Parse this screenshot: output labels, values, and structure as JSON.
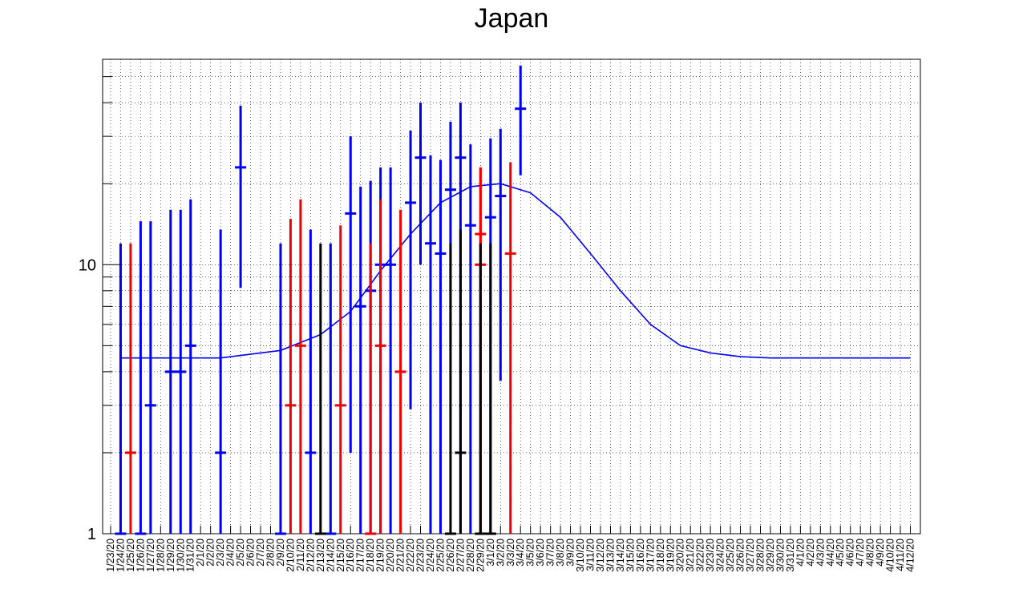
{
  "chart_data": {
    "type": "scatter",
    "title": "Japan",
    "xlabel": "",
    "ylabel": "",
    "yscale": "log",
    "ylim": [
      1,
      58
    ],
    "grid": true,
    "categories": [
      "1/23/20",
      "1/24/20",
      "1/25/20",
      "1/26/20",
      "1/27/20",
      "1/28/20",
      "1/29/20",
      "1/30/20",
      "1/31/20",
      "2/1/20",
      "2/2/20",
      "2/3/20",
      "2/4/20",
      "2/5/20",
      "2/6/20",
      "2/7/20",
      "2/8/20",
      "2/9/20",
      "2/10/20",
      "2/11/20",
      "2/12/20",
      "2/13/20",
      "2/14/20",
      "2/15/20",
      "2/16/20",
      "2/17/20",
      "2/18/20",
      "2/19/20",
      "2/20/20",
      "2/21/20",
      "2/22/20",
      "2/23/20",
      "2/24/20",
      "2/25/20",
      "2/26/20",
      "2/27/20",
      "2/28/20",
      "2/29/20",
      "3/1/20",
      "3/2/20",
      "3/3/20",
      "3/4/20",
      "3/5/20",
      "3/6/20",
      "3/7/20",
      "3/8/20",
      "3/9/20",
      "3/10/20",
      "3/11/20",
      "3/12/20",
      "3/13/20",
      "3/14/20",
      "3/15/20",
      "3/16/20",
      "3/17/20",
      "3/18/20",
      "3/19/20",
      "3/20/20",
      "3/21/20",
      "3/22/20",
      "3/23/20",
      "3/24/20",
      "3/25/20",
      "3/26/20",
      "3/27/20",
      "3/28/20",
      "3/29/20",
      "3/30/20",
      "3/31/20",
      "4/1/20",
      "4/2/20",
      "4/3/20",
      "4/4/20",
      "4/5/20",
      "4/6/20",
      "4/7/20",
      "4/8/20",
      "4/9/20",
      "4/10/20",
      "4/11/20",
      "4/12/20"
    ],
    "yticks": [
      1,
      10
    ],
    "ytick_labels": [
      "1",
      "10"
    ],
    "colors": {
      "blue": "#0000ee",
      "red": "#ee0000",
      "black": "#000000"
    },
    "series": [
      {
        "color": "blue",
        "points": [
          {
            "x": "1/24/20",
            "y": 1,
            "lo": 1,
            "hi": 12
          },
          {
            "x": "1/26/20",
            "y": 1,
            "lo": 1,
            "hi": 14.5
          },
          {
            "x": "1/27/20",
            "y": 3,
            "lo": 1,
            "hi": 14.5
          },
          {
            "x": "1/29/20",
            "y": 4,
            "lo": 1,
            "hi": 16
          },
          {
            "x": "1/30/20",
            "y": 4,
            "lo": 1,
            "hi": 16
          },
          {
            "x": "1/31/20",
            "y": 5,
            "lo": 1,
            "hi": 17.5
          },
          {
            "x": "2/3/20",
            "y": 2,
            "lo": 1,
            "hi": 13.5
          },
          {
            "x": "2/5/20",
            "y": 23,
            "lo": 8.2,
            "hi": 39
          },
          {
            "x": "2/9/20",
            "y": 1,
            "lo": 1,
            "hi": 12
          },
          {
            "x": "2/12/20",
            "y": 2,
            "lo": 1,
            "hi": 13.5
          },
          {
            "x": "2/14/20",
            "y": 1,
            "lo": 1,
            "hi": 12
          },
          {
            "x": "2/16/20",
            "y": 15.5,
            "lo": 2,
            "hi": 30
          },
          {
            "x": "2/17/20",
            "y": 7,
            "lo": 1,
            "hi": 19.5
          },
          {
            "x": "2/18/20",
            "y": 8,
            "lo": 1,
            "hi": 20.5
          },
          {
            "x": "2/19/20",
            "y": 10,
            "lo": 1,
            "hi": 23
          },
          {
            "x": "2/20/20",
            "y": 10,
            "lo": 1,
            "hi": 23
          },
          {
            "x": "2/22/20",
            "y": 17,
            "lo": 2.9,
            "hi": 31.5
          },
          {
            "x": "2/23/20",
            "y": 25,
            "lo": 10,
            "hi": 40
          },
          {
            "x": "2/24/20",
            "y": 12,
            "lo": 1,
            "hi": 25.5
          },
          {
            "x": "2/25/20",
            "y": 11,
            "lo": 1,
            "hi": 24.5
          },
          {
            "x": "2/26/20",
            "y": 19,
            "lo": 5,
            "hi": 34
          },
          {
            "x": "2/27/20",
            "y": 25,
            "lo": 1,
            "hi": 40
          },
          {
            "x": "2/28/20",
            "y": 14,
            "lo": 1,
            "hi": 28
          },
          {
            "x": "3/1/20",
            "y": 15,
            "lo": 1,
            "hi": 29.5
          },
          {
            "x": "3/2/20",
            "y": 18,
            "lo": 3.7,
            "hi": 32
          },
          {
            "x": "3/4/20",
            "y": 38,
            "lo": 21.5,
            "hi": 55
          }
        ]
      },
      {
        "color": "red",
        "points": [
          {
            "x": "1/25/20",
            "y": 2,
            "lo": 1,
            "hi": 12
          },
          {
            "x": "2/10/20",
            "y": 3,
            "lo": 1,
            "hi": 14.8
          },
          {
            "x": "2/11/20",
            "y": 5,
            "lo": 1,
            "hi": 17.5
          },
          {
            "x": "2/15/20",
            "y": 3,
            "lo": 1,
            "hi": 14
          },
          {
            "x": "2/18/20",
            "y": 1,
            "lo": 1,
            "hi": 12
          },
          {
            "x": "2/19/20",
            "y": 5,
            "lo": 1,
            "hi": 17.5
          },
          {
            "x": "2/21/20",
            "y": 4,
            "lo": 1,
            "hi": 16
          },
          {
            "x": "2/29/20",
            "y": 10,
            "lo": 1,
            "hi": 23
          },
          {
            "x": "2/29/20",
            "y": 13,
            "lo": 1,
            "hi": 23
          },
          {
            "x": "3/3/20",
            "y": 11,
            "lo": 1,
            "hi": 24
          }
        ]
      },
      {
        "color": "black",
        "points": [
          {
            "x": "2/13/20",
            "y": 1,
            "lo": 1,
            "hi": 12
          },
          {
            "x": "2/26/20",
            "y": 1,
            "lo": 1,
            "hi": 12
          },
          {
            "x": "2/27/20",
            "y": 2,
            "lo": 1,
            "hi": 13.5
          },
          {
            "x": "2/29/20",
            "y": 1,
            "lo": 1,
            "hi": 12
          },
          {
            "x": "3/1/20",
            "y": 1,
            "lo": 1,
            "hi": 12
          }
        ]
      }
    ],
    "fit": {
      "color": "blue",
      "x": [
        "1/24/20",
        "2/3/20",
        "2/9/20",
        "2/13/20",
        "2/16/20",
        "2/19/20",
        "2/22/20",
        "2/25/20",
        "2/28/20",
        "3/2/20",
        "3/5/20",
        "3/8/20",
        "3/11/20",
        "3/14/20",
        "3/17/20",
        "3/20/20",
        "3/23/20",
        "3/26/20",
        "3/29/20",
        "4/1/20",
        "4/4/20",
        "4/8/20",
        "4/12/20"
      ],
      "y": [
        4.5,
        4.5,
        4.8,
        5.5,
        6.7,
        9.5,
        13,
        17,
        19.5,
        20,
        18.5,
        15,
        11,
        8,
        6,
        5,
        4.7,
        4.55,
        4.5,
        4.5,
        4.5,
        4.5,
        4.5
      ]
    }
  }
}
